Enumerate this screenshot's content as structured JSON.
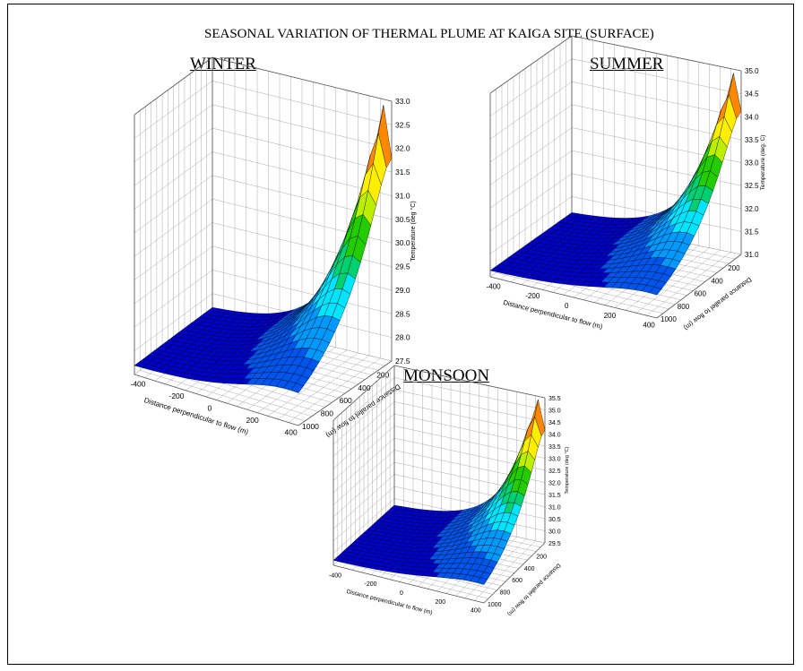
{
  "title": "SEASONAL VARIATION OF THERMAL PLUME AT KAIGA SITE (SURFACE)",
  "colors": {
    "bands": [
      "#0000cc",
      "#0055ee",
      "#0099ff",
      "#00e5ff",
      "#00d070",
      "#22cc00",
      "#bbee00",
      "#ffee00",
      "#ff8800",
      "#ee0000"
    ],
    "edge": "#000000",
    "grid": "#aaaaaa"
  },
  "chart_data": [
    {
      "type": "surface3d",
      "title": "WINTER",
      "xlabel": "Distance perpendicular to flow (m)",
      "ylabel": "Distance parallel to flow (m)",
      "zlabel": "Temperature (deg °C)",
      "x_ticks": [
        "-400",
        "-200",
        "0",
        "200",
        "400"
      ],
      "y_ticks": [
        "200",
        "400",
        "600",
        "800",
        "1000"
      ],
      "z_ticks": [
        "27.5",
        "28.0",
        "28.5",
        "29.0",
        "29.5",
        "30.0",
        "30.5",
        "31.0",
        "31.5",
        "32.0",
        "32.5",
        "33.0"
      ],
      "zlim": [
        27.5,
        33.0
      ],
      "peak": {
        "x": 450,
        "y": 0,
        "z": 33.0
      },
      "min_z": 27.5
    },
    {
      "type": "surface3d",
      "title": "SUMMER",
      "xlabel": "Distance perpendicular to flow (m)",
      "ylabel": "Distance parallel to flow (m)",
      "zlabel": "Temperature (deg. C)",
      "x_ticks": [
        "-400",
        "-200",
        "0",
        "200",
        "400"
      ],
      "y_ticks": [
        "200",
        "400",
        "600",
        "800",
        "1000"
      ],
      "z_ticks": [
        "31.0",
        "31.5",
        "32.0",
        "32.5",
        "33.0",
        "33.5",
        "34.0",
        "34.5",
        "35.0"
      ],
      "zlim": [
        31.0,
        35.0
      ],
      "peak": {
        "x": 450,
        "y": 0,
        "z": 35.0
      },
      "min_z": 31.0
    },
    {
      "type": "surface3d",
      "title": "MONSOON",
      "xlabel": "Distance perpendicular to flow (m)",
      "ylabel": "Distance parallel to flow (m)",
      "zlabel": "Temperature (deg °C)",
      "x_ticks": [
        "-400",
        "-200",
        "0",
        "200",
        "400"
      ],
      "y_ticks": [
        "200",
        "400",
        "600",
        "800",
        "1000"
      ],
      "z_ticks": [
        "29.5",
        "30.0",
        "30.5",
        "31.0",
        "31.5",
        "32.0",
        "32.5",
        "33.0",
        "33.5",
        "34.0",
        "34.5",
        "35.0",
        "35.5"
      ],
      "zlim": [
        29.5,
        35.5
      ],
      "peak": {
        "x": 450,
        "y": 0,
        "z": 35.5
      },
      "min_z": 29.5
    }
  ]
}
